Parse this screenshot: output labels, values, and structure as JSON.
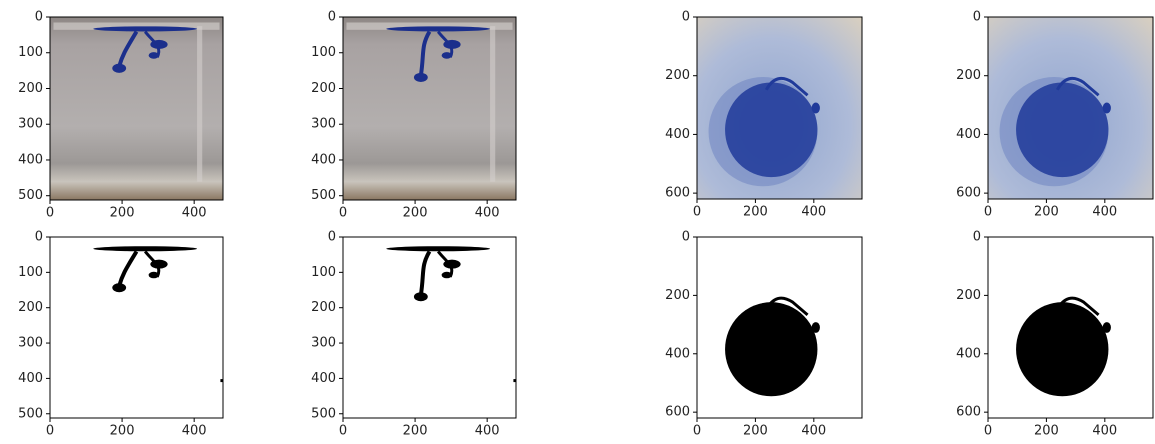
{
  "chart_data": [
    {
      "type": "image",
      "xlim": [
        0,
        480
      ],
      "ylim": [
        512,
        0
      ],
      "xticks": [
        0,
        200,
        400
      ],
      "yticks": [
        0,
        100,
        200,
        300,
        400,
        500
      ]
    },
    {
      "type": "image",
      "xlim": [
        0,
        480
      ],
      "ylim": [
        512,
        0
      ],
      "xticks": [
        0,
        200,
        400
      ],
      "yticks": [
        0,
        100,
        200,
        300,
        400,
        500
      ]
    },
    {
      "type": "image",
      "xlim": [
        0,
        565
      ],
      "ylim": [
        620,
        0
      ],
      "xticks": [
        0,
        200,
        400
      ],
      "yticks": [
        0,
        200,
        400,
        600
      ]
    },
    {
      "type": "image",
      "xlim": [
        0,
        565
      ],
      "ylim": [
        620,
        0
      ],
      "xticks": [
        0,
        200,
        400
      ],
      "yticks": [
        0,
        200,
        400,
        600
      ]
    },
    {
      "type": "image",
      "xlim": [
        0,
        480
      ],
      "ylim": [
        512,
        0
      ],
      "xticks": [
        0,
        200,
        400
      ],
      "yticks": [
        0,
        100,
        200,
        300,
        400,
        500
      ]
    },
    {
      "type": "image",
      "xlim": [
        0,
        480
      ],
      "ylim": [
        512,
        0
      ],
      "xticks": [
        0,
        200,
        400
      ],
      "yticks": [
        0,
        100,
        200,
        300,
        400,
        500
      ]
    },
    {
      "type": "image",
      "xlim": [
        0,
        565
      ],
      "ylim": [
        620,
        0
      ],
      "xticks": [
        0,
        200,
        400
      ],
      "yticks": [
        0,
        200,
        400,
        600
      ]
    },
    {
      "type": "image",
      "xlim": [
        0,
        565
      ],
      "ylim": [
        620,
        0
      ],
      "xticks": [
        0,
        200,
        400
      ],
      "yticks": [
        0,
        200,
        400,
        600
      ]
    }
  ]
}
